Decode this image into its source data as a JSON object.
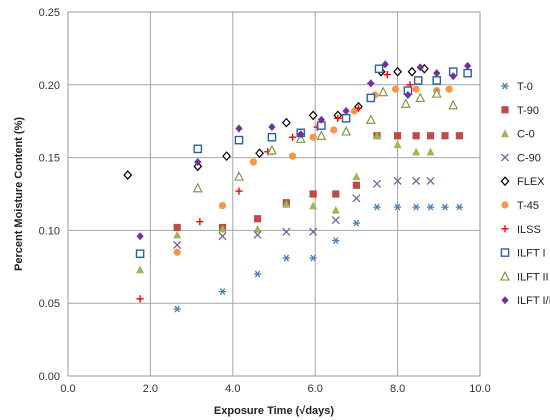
{
  "chart_data": {
    "type": "scatter",
    "title": "",
    "xlabel": "Exposure Time (√days)",
    "ylabel": "Percent Moisture Content (%)",
    "xlim": [
      0,
      10
    ],
    "ylim": [
      0,
      0.25
    ],
    "x_ticks": [
      "0.0",
      "2.0",
      "4.0",
      "6.0",
      "8.0",
      "10.0"
    ],
    "y_ticks": [
      "0.00",
      "0.05",
      "0.10",
      "0.15",
      "0.20",
      "0.25"
    ],
    "grid": true,
    "legend_position": "right",
    "series": [
      {
        "name": "T-0",
        "marker": "asterisk",
        "color": "#4a7ebb",
        "x": [
          2.65,
          3.75,
          4.6,
          5.3,
          5.95,
          6.5,
          7.0,
          7.5,
          8.0,
          8.45,
          8.8,
          9.15,
          9.5
        ],
        "y": [
          0.046,
          0.058,
          0.07,
          0.081,
          0.081,
          0.093,
          0.105,
          0.116,
          0.116,
          0.116,
          0.116,
          0.116,
          0.116
        ]
      },
      {
        "name": "T-90",
        "marker": "square",
        "color": "#be4b48",
        "x": [
          2.65,
          3.75,
          4.6,
          5.3,
          5.95,
          6.5,
          7.0,
          7.5,
          8.0,
          8.45,
          8.8,
          9.15,
          9.5
        ],
        "y": [
          0.102,
          0.102,
          0.108,
          0.119,
          0.125,
          0.125,
          0.131,
          0.165,
          0.165,
          0.165,
          0.165,
          0.165,
          0.165
        ]
      },
      {
        "name": "C-0",
        "marker": "triangle",
        "color": "#98b954",
        "x": [
          1.75,
          2.65,
          3.75,
          4.6,
          5.3,
          5.95,
          6.5,
          7.0,
          7.5,
          8.0,
          8.45,
          8.8
        ],
        "y": [
          0.073,
          0.097,
          0.101,
          0.101,
          0.118,
          0.117,
          0.114,
          0.137,
          0.165,
          0.159,
          0.154,
          0.154
        ]
      },
      {
        "name": "C-90",
        "marker": "x",
        "color": "#7d60a0",
        "x": [
          2.65,
          3.75,
          4.6,
          5.3,
          5.95,
          6.5,
          7.0,
          7.5,
          8.0,
          8.45,
          8.8
        ],
        "y": [
          0.09,
          0.096,
          0.097,
          0.099,
          0.099,
          0.107,
          0.122,
          0.132,
          0.134,
          0.134,
          0.134
        ]
      },
      {
        "name": "FLEX",
        "marker": "diamond-open",
        "color": "#000000",
        "x": [
          1.45,
          3.15,
          3.85,
          4.65,
          5.3,
          5.95,
          6.55,
          7.05,
          7.6,
          8.0,
          8.35,
          8.65
        ],
        "y": [
          0.138,
          0.144,
          0.151,
          0.153,
          0.174,
          0.179,
          0.179,
          0.185,
          0.209,
          0.209,
          0.209,
          0.211
        ]
      },
      {
        "name": "T-45",
        "marker": "circle",
        "color": "#f79646",
        "x": [
          2.65,
          3.75,
          4.5,
          4.95,
          5.45,
          5.95,
          6.45,
          6.95,
          7.45,
          7.95,
          8.45,
          8.95,
          9.25
        ],
        "y": [
          0.085,
          0.117,
          0.147,
          0.154,
          0.151,
          0.164,
          0.169,
          0.182,
          0.193,
          0.197,
          0.197,
          0.196,
          0.197
        ]
      },
      {
        "name": "ILSS",
        "marker": "plus",
        "color": "#ff0000",
        "x": [
          1.75,
          3.2,
          4.15,
          4.85,
          5.45,
          6.05,
          6.55,
          7.05,
          7.35,
          7.75,
          8.3
        ],
        "y": [
          0.053,
          0.106,
          0.127,
          0.154,
          0.164,
          0.171,
          0.177,
          0.184,
          0.201,
          0.207,
          0.2
        ]
      },
      {
        "name": "ILFT I",
        "marker": "square-open",
        "color": "#2e5f9e",
        "x": [
          1.75,
          3.15,
          4.15,
          4.95,
          5.65,
          6.15,
          6.75,
          7.35,
          7.55,
          8.25,
          8.5,
          8.95,
          9.35,
          9.7
        ],
        "y": [
          0.084,
          0.156,
          0.162,
          0.164,
          0.167,
          0.172,
          0.177,
          0.191,
          0.211,
          0.196,
          0.203,
          0.203,
          0.209,
          0.208
        ]
      },
      {
        "name": "ILFT II",
        "marker": "triangle-open",
        "color": "#77933c",
        "x": [
          3.15,
          4.15,
          4.95,
          5.65,
          6.15,
          6.75,
          7.35,
          7.65,
          8.2,
          8.55,
          8.95,
          9.35
        ],
        "y": [
          0.129,
          0.137,
          0.155,
          0.163,
          0.165,
          0.168,
          0.176,
          0.195,
          0.187,
          0.191,
          0.194,
          0.186
        ]
      },
      {
        "name": "ILFT I/II",
        "marker": "diamond",
        "color": "#7030a0",
        "x": [
          1.75,
          3.15,
          4.15,
          4.95,
          5.65,
          6.15,
          6.75,
          7.35,
          7.7,
          8.25,
          8.55,
          8.95,
          9.35,
          9.7
        ],
        "y": [
          0.096,
          0.147,
          0.17,
          0.171,
          0.166,
          0.176,
          0.182,
          0.201,
          0.214,
          0.193,
          0.212,
          0.208,
          0.206,
          0.213
        ]
      }
    ]
  }
}
